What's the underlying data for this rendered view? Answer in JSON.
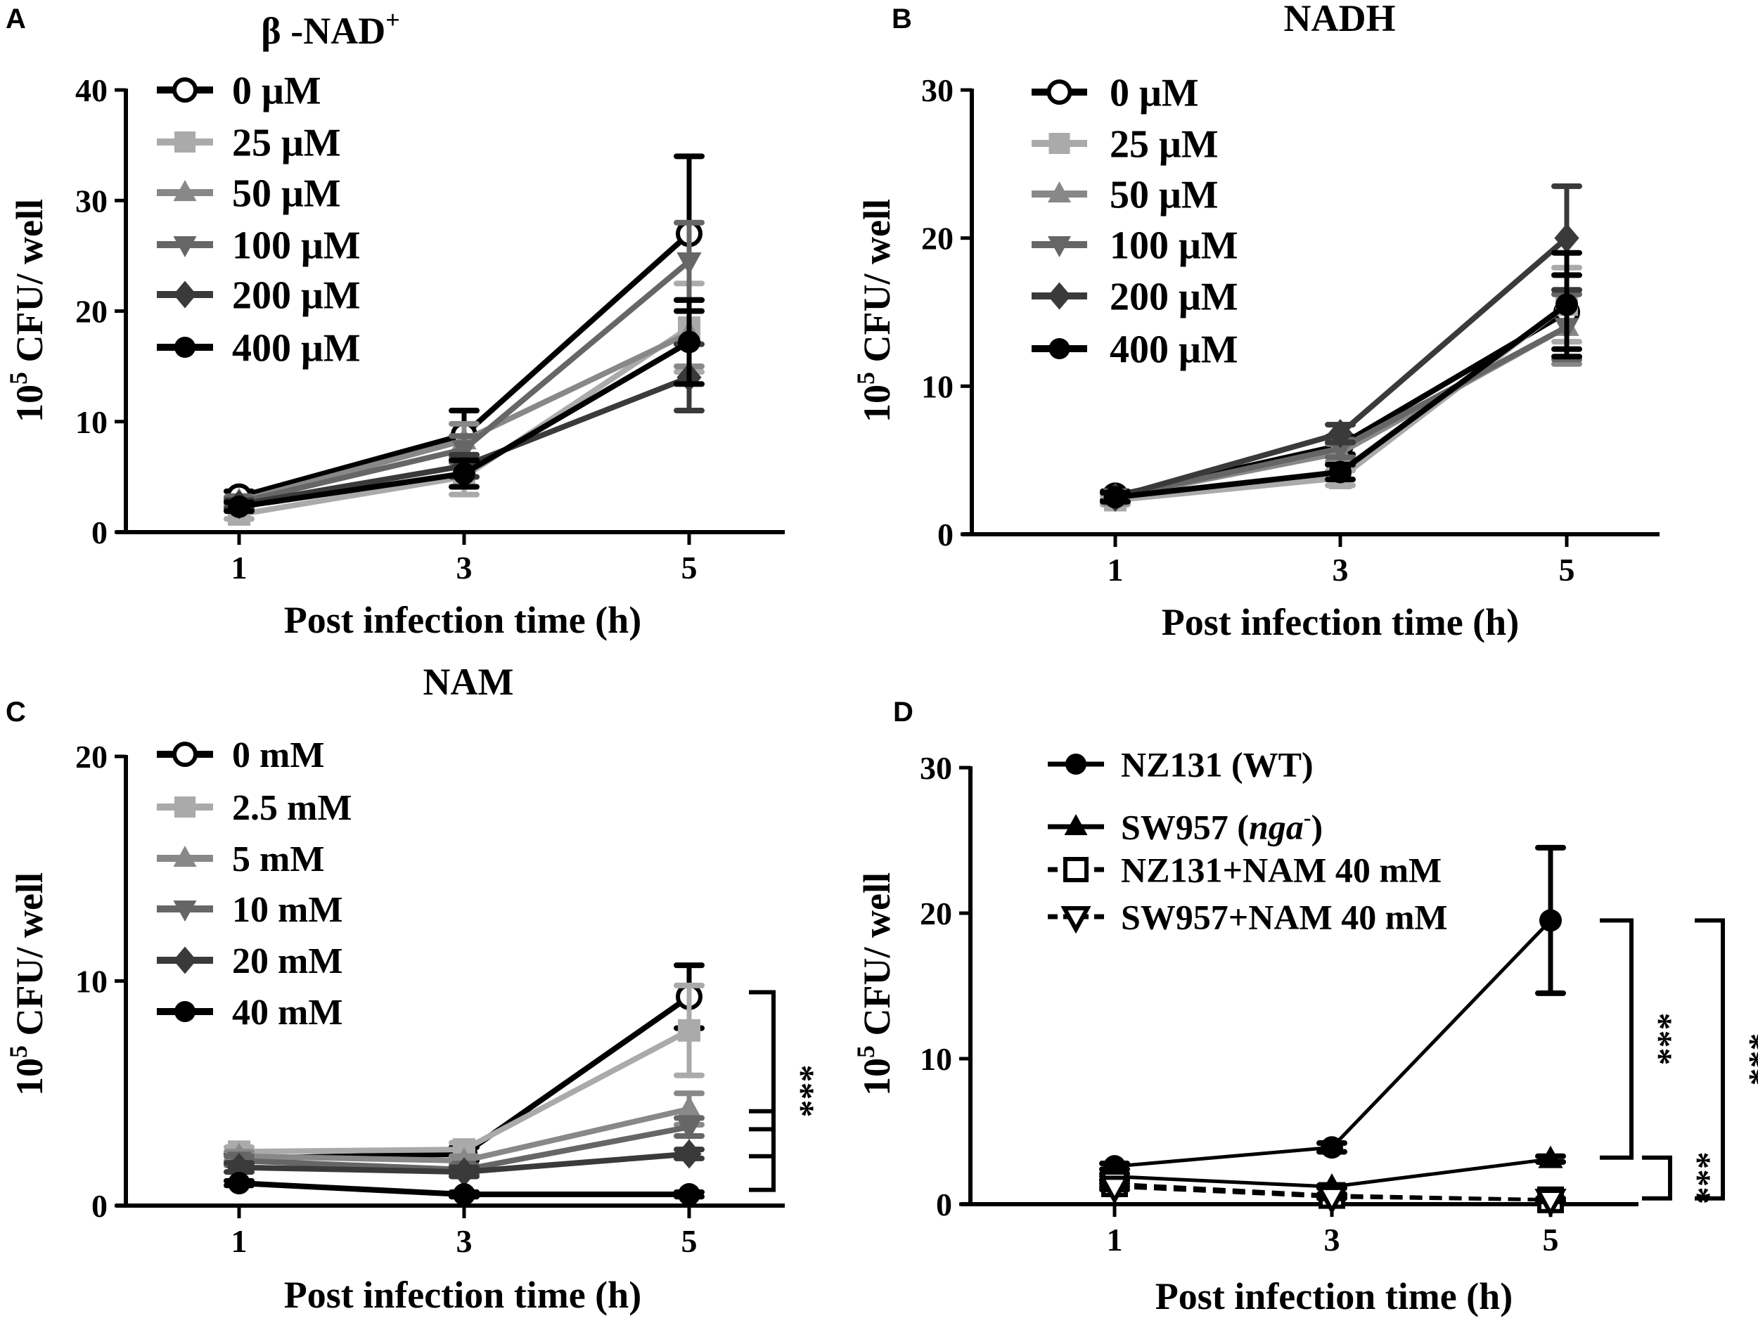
{
  "chart_data": [
    {
      "panel": "A",
      "type": "line",
      "title": "β -NAD",
      "title_sup": "+",
      "xlabel": "Post infection time (h)",
      "ylabel": "CFU/ well",
      "ylabel_prefix": "10",
      "ylabel_sup": "5",
      "x": [
        1,
        3,
        5
      ],
      "xticks": [
        "1",
        "3",
        "5"
      ],
      "ylim": [
        0,
        40
      ],
      "yticks": [
        "0",
        "10",
        "20",
        "30",
        "40"
      ],
      "legend_position": "top-left",
      "series": [
        {
          "name": "0 μM",
          "marker": "circle-open",
          "color": "#000000",
          "values": [
            3.2,
            8.8,
            27
          ],
          "err": [
            0.5,
            2.2,
            7
          ]
        },
        {
          "name": "25 μM",
          "marker": "square",
          "color": "#aaaaaa",
          "values": [
            1.6,
            5.0,
            18.5
          ],
          "err": [
            0.4,
            1.6,
            4
          ]
        },
        {
          "name": "50 μM",
          "marker": "triangle-up",
          "color": "#888888",
          "values": [
            2.8,
            8.3,
            18
          ],
          "err": [
            0.4,
            1.5,
            3
          ]
        },
        {
          "name": "100 μM",
          "marker": "triangle-down",
          "color": "#666666",
          "values": [
            2.7,
            7.5,
            24.5
          ],
          "err": [
            0.4,
            1.2,
            3.5
          ]
        },
        {
          "name": "200 μM",
          "marker": "diamond",
          "color": "#3a3a3a",
          "values": [
            2.5,
            6.0,
            14
          ],
          "err": [
            0.4,
            1.0,
            3
          ]
        },
        {
          "name": "400 μM",
          "marker": "circle",
          "color": "#000000",
          "values": [
            2.3,
            5.3,
            17.2
          ],
          "err": [
            0.4,
            1.2,
            3.8
          ]
        }
      ]
    },
    {
      "panel": "B",
      "type": "line",
      "title": "NADH",
      "title_sup": "",
      "xlabel": "Post infection time (h)",
      "ylabel": "CFU/ well",
      "ylabel_prefix": "10",
      "ylabel_sup": "5",
      "x": [
        1,
        3,
        5
      ],
      "xticks": [
        "1",
        "3",
        "5"
      ],
      "ylim": [
        0,
        30
      ],
      "yticks": [
        "0",
        "10",
        "20",
        "30"
      ],
      "legend_position": "top-left",
      "series": [
        {
          "name": "0 μM",
          "marker": "circle-open",
          "color": "#000000",
          "values": [
            2.6,
            6.0,
            15
          ],
          "err": [
            0.3,
            0.6,
            2.5
          ]
        },
        {
          "name": "25 μM",
          "marker": "square",
          "color": "#aaaaaa",
          "values": [
            2.3,
            3.8,
            15.5
          ],
          "err": [
            0.3,
            0.5,
            2.5
          ]
        },
        {
          "name": "50 μM",
          "marker": "triangle-up",
          "color": "#888888",
          "values": [
            2.5,
            5.5,
            14
          ],
          "err": [
            0.3,
            0.6,
            2.5
          ]
        },
        {
          "name": "100 μM",
          "marker": "triangle-down",
          "color": "#666666",
          "values": [
            2.5,
            5.8,
            14
          ],
          "err": [
            0.3,
            0.6,
            2.2
          ]
        },
        {
          "name": "200 μM",
          "marker": "diamond",
          "color": "#3a3a3a",
          "values": [
            2.5,
            6.8,
            20
          ],
          "err": [
            0.3,
            0.6,
            3.5
          ]
        },
        {
          "name": "400 μM",
          "marker": "circle",
          "color": "#000000",
          "values": [
            2.5,
            4.2,
            15.5
          ],
          "err": [
            0.3,
            0.5,
            3.5
          ]
        }
      ]
    },
    {
      "panel": "C",
      "type": "line",
      "title": "NAM",
      "title_sup": "",
      "xlabel": "Post infection time (h)",
      "ylabel": "CFU/ well",
      "ylabel_prefix": "10",
      "ylabel_sup": "5",
      "x": [
        1,
        3,
        5
      ],
      "xticks": [
        "1",
        "3",
        "5"
      ],
      "ylim": [
        0,
        20
      ],
      "yticks": [
        "0",
        "10",
        "20"
      ],
      "legend_position": "top-left",
      "series": [
        {
          "name": "0 mM",
          "marker": "circle-open",
          "color": "#000000",
          "values": [
            2.1,
            2.3,
            9.3
          ],
          "err": [
            0.2,
            0.3,
            1.4
          ]
        },
        {
          "name": "2.5 mM",
          "marker": "square",
          "color": "#aaaaaa",
          "values": [
            2.4,
            2.5,
            7.8
          ],
          "err": [
            0.2,
            0.3,
            2.0
          ]
        },
        {
          "name": "5 mM",
          "marker": "triangle-up",
          "color": "#888888",
          "values": [
            2.2,
            2.0,
            4.3
          ],
          "err": [
            0.2,
            0.2,
            0.7
          ]
        },
        {
          "name": "10 mM",
          "marker": "triangle-down",
          "color": "#666666",
          "values": [
            2.0,
            1.6,
            3.5
          ],
          "err": [
            0.2,
            0.2,
            0.4
          ]
        },
        {
          "name": "20 mM",
          "marker": "diamond",
          "color": "#3a3a3a",
          "values": [
            1.7,
            1.5,
            2.3
          ],
          "err": [
            0.2,
            0.2,
            0.2
          ]
        },
        {
          "name": "40 mM",
          "marker": "circle",
          "color": "#000000",
          "values": [
            1.0,
            0.5,
            0.5
          ],
          "err": [
            0.1,
            0.1,
            0.1
          ]
        }
      ],
      "annotations": [
        {
          "text": "***",
          "from": 9.5,
          "to": 0.7,
          "ticks": [
            4.2,
            3.4,
            2.2
          ]
        }
      ]
    },
    {
      "panel": "D",
      "type": "line",
      "title": "",
      "title_sup": "",
      "xlabel": "Post infection time (h)",
      "ylabel": "CFU/ well",
      "ylabel_prefix": "10",
      "ylabel_sup": "5",
      "x": [
        1,
        3,
        5
      ],
      "xticks": [
        "1",
        "3",
        "5"
      ],
      "ylim": [
        0,
        30
      ],
      "yticks": [
        "0",
        "10",
        "20",
        "30"
      ],
      "legend_position": "top-left",
      "series": [
        {
          "name": "NZ131 (WT)",
          "marker": "circle",
          "color": "#000000",
          "dashed": false,
          "values": [
            2.6,
            3.9,
            19.5
          ],
          "err": [
            0.2,
            0.3,
            5
          ]
        },
        {
          "name": "SW957 (",
          "name_italic": "nga",
          "name_sup": "-",
          "name_end": ")",
          "marker": "triangle-up",
          "color": "#000000",
          "dashed": false,
          "values": [
            1.9,
            1.2,
            3.1
          ],
          "err": [
            0.2,
            0.1,
            0.2
          ]
        },
        {
          "name": "NZ131+NAM 40 mM",
          "marker": "square-open",
          "color": "#000000",
          "dashed": true,
          "values": [
            1.4,
            0.6,
            0.3
          ],
          "err": [
            0.2,
            0.1,
            0.1
          ]
        },
        {
          "name": "SW957+NAM 40 mM",
          "marker": "triangle-down-open",
          "color": "#000000",
          "dashed": true,
          "values": [
            1.2,
            0.5,
            0.3
          ],
          "err": [
            0.2,
            0.1,
            0.1
          ]
        }
      ],
      "annotations": [
        {
          "text": "***",
          "from": 19.5,
          "to": 3.2
        },
        {
          "text": "***",
          "from": 3.2,
          "to": 0.4
        },
        {
          "text": "***",
          "from": 19.5,
          "to": 0.4
        }
      ]
    }
  ]
}
